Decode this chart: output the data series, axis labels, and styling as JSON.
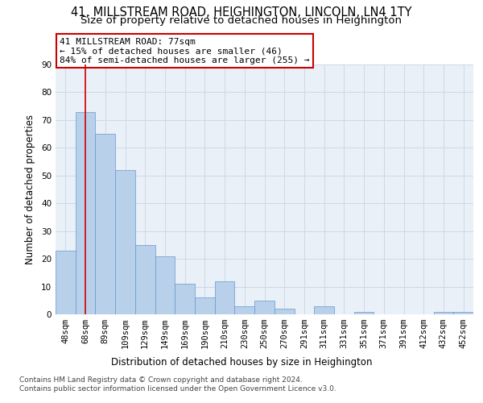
{
  "title_line1": "41, MILLSTREAM ROAD, HEIGHINGTON, LINCOLN, LN4 1TY",
  "title_line2": "Size of property relative to detached houses in Heighington",
  "xlabel": "Distribution of detached houses by size in Heighington",
  "ylabel": "Number of detached properties",
  "categories": [
    "48sqm",
    "68sqm",
    "89sqm",
    "109sqm",
    "129sqm",
    "149sqm",
    "169sqm",
    "190sqm",
    "210sqm",
    "230sqm",
    "250sqm",
    "270sqm",
    "291sqm",
    "311sqm",
    "331sqm",
    "351sqm",
    "371sqm",
    "391sqm",
    "412sqm",
    "432sqm",
    "452sqm"
  ],
  "values": [
    23,
    73,
    65,
    52,
    25,
    21,
    11,
    6,
    12,
    3,
    5,
    2,
    0,
    3,
    0,
    1,
    0,
    0,
    0,
    1,
    1
  ],
  "bar_color": "#b8d0ea",
  "bar_edge_color": "#6699cc",
  "grid_color": "#ccd9ea",
  "background_color": "#eaf0f8",
  "vline_x": 1,
  "vline_color": "#cc0000",
  "annotation_text": "41 MILLSTREAM ROAD: 77sqm\n← 15% of detached houses are smaller (46)\n84% of semi-detached houses are larger (255) →",
  "annotation_box_color": "#ffffff",
  "annotation_box_edge": "#cc0000",
  "ylim": [
    0,
    90
  ],
  "yticks": [
    0,
    10,
    20,
    30,
    40,
    50,
    60,
    70,
    80,
    90
  ],
  "footer": "Contains HM Land Registry data © Crown copyright and database right 2024.\nContains public sector information licensed under the Open Government Licence v3.0.",
  "title_fontsize": 10.5,
  "subtitle_fontsize": 9.5,
  "axis_label_fontsize": 8.5,
  "tick_fontsize": 7.5,
  "annotation_fontsize": 8,
  "footer_fontsize": 6.5
}
